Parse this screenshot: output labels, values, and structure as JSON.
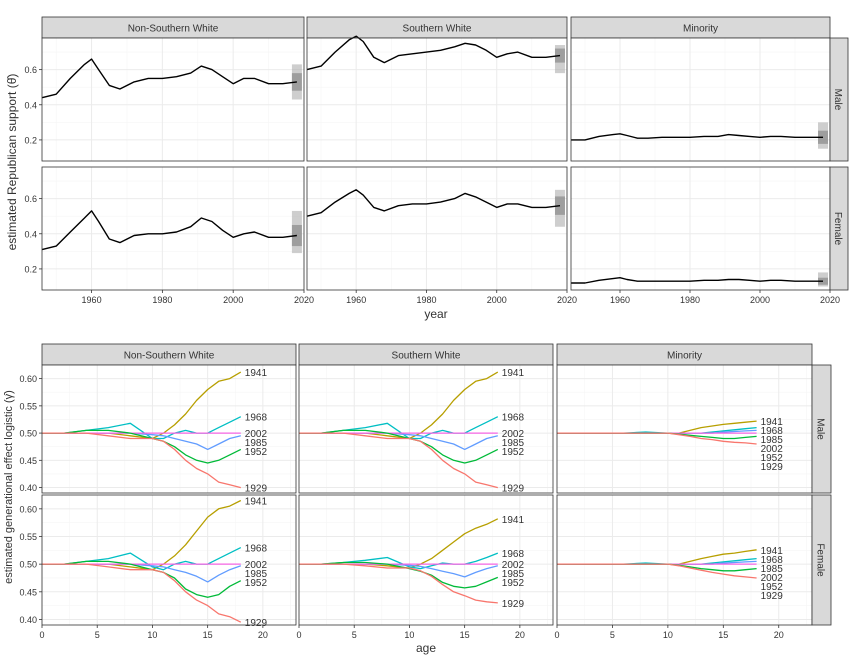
{
  "colors": {
    "strip_bg": "#d9d9d9",
    "panel_border": "#333333",
    "grid_major": "#ebebeb",
    "grid_minor": "#f5f5f5",
    "line_top": "#000000",
    "band": "#a6a6a6",
    "text": "#333333",
    "cohort": {
      "1929": "#f8766d",
      "1941": "#b79f00",
      "1952": "#00ba38",
      "1968": "#00bfc4",
      "1985": "#619cff",
      "2002": "#f564e3"
    }
  },
  "top": {
    "ylabel": "estimated Republican support (θ̂)",
    "xlabel": "year",
    "col_strips": [
      "Non-Southern White",
      "Southern White",
      "Minority"
    ],
    "row_strips": [
      "Male",
      "Female"
    ],
    "x_ticks": [
      "1960",
      "1980",
      "2000",
      "2020"
    ],
    "y_ticks": [
      "0.2",
      "0.4",
      "0.6"
    ]
  },
  "bottom": {
    "ylabel": "estimated generational effect logistic (γ̂)",
    "xlabel": "age",
    "col_strips": [
      "Non-Southern White",
      "Southern White",
      "Minority"
    ],
    "row_strips": [
      "Male",
      "Female"
    ],
    "x_ticks": [
      "0",
      "5",
      "10",
      "15",
      "20"
    ],
    "y_ticks": [
      "0.40",
      "0.45",
      "0.50",
      "0.55",
      "0.60"
    ]
  },
  "chart_data": [
    {
      "type": "line",
      "xlabel": "year",
      "ylabel": "estimated Republican support (θ̂)",
      "xlim": [
        1946,
        2020
      ],
      "ylim": [
        0.08,
        0.78
      ],
      "facets_rows": [
        "Male",
        "Female"
      ],
      "facets_cols": [
        "Non-Southern White",
        "Southern White",
        "Minority"
      ],
      "x": [
        1946,
        1950,
        1954,
        1958,
        1960,
        1962,
        1965,
        1968,
        1972,
        1976,
        1980,
        1984,
        1988,
        1991,
        1994,
        1997,
        2000,
        2003,
        2006,
        2010,
        2014,
        2018
      ],
      "series": [
        {
          "row": "Male",
          "col": "Non-Southern White",
          "values": [
            0.44,
            0.46,
            0.55,
            0.63,
            0.66,
            0.6,
            0.51,
            0.49,
            0.53,
            0.55,
            0.55,
            0.56,
            0.58,
            0.62,
            0.6,
            0.56,
            0.52,
            0.55,
            0.55,
            0.52,
            0.52,
            0.53
          ],
          "band": [
            0.43,
            0.63
          ]
        },
        {
          "row": "Male",
          "col": "Southern White",
          "values": [
            0.6,
            0.62,
            0.7,
            0.77,
            0.79,
            0.76,
            0.67,
            0.64,
            0.68,
            0.69,
            0.7,
            0.71,
            0.73,
            0.75,
            0.74,
            0.71,
            0.67,
            0.69,
            0.7,
            0.67,
            0.67,
            0.68
          ],
          "band": [
            0.58,
            0.74
          ]
        },
        {
          "row": "Male",
          "col": "Minority",
          "values": [
            0.2,
            0.2,
            0.22,
            0.23,
            0.235,
            0.225,
            0.21,
            0.21,
            0.215,
            0.215,
            0.215,
            0.22,
            0.22,
            0.23,
            0.225,
            0.22,
            0.215,
            0.22,
            0.22,
            0.215,
            0.215,
            0.215
          ],
          "band": [
            0.15,
            0.3
          ]
        },
        {
          "row": "Female",
          "col": "Non-Southern White",
          "values": [
            0.31,
            0.33,
            0.41,
            0.49,
            0.53,
            0.47,
            0.37,
            0.35,
            0.39,
            0.4,
            0.4,
            0.41,
            0.44,
            0.49,
            0.47,
            0.42,
            0.38,
            0.4,
            0.41,
            0.38,
            0.38,
            0.39
          ],
          "band": [
            0.29,
            0.53
          ]
        },
        {
          "row": "Female",
          "col": "Southern White",
          "values": [
            0.5,
            0.52,
            0.58,
            0.63,
            0.65,
            0.62,
            0.55,
            0.53,
            0.56,
            0.57,
            0.57,
            0.58,
            0.6,
            0.63,
            0.61,
            0.58,
            0.55,
            0.57,
            0.57,
            0.55,
            0.55,
            0.56
          ],
          "band": [
            0.44,
            0.65
          ]
        },
        {
          "row": "Female",
          "col": "Minority",
          "values": [
            0.12,
            0.12,
            0.135,
            0.145,
            0.15,
            0.14,
            0.13,
            0.13,
            0.13,
            0.13,
            0.13,
            0.135,
            0.135,
            0.14,
            0.14,
            0.135,
            0.13,
            0.135,
            0.135,
            0.13,
            0.13,
            0.13
          ],
          "band": [
            0.1,
            0.18
          ]
        }
      ]
    },
    {
      "type": "line",
      "xlabel": "age",
      "ylabel": "estimated generational effect logistic (γ̂)",
      "xlim": [
        0,
        23
      ],
      "ylim": [
        0.39,
        0.625
      ],
      "facets_rows": [
        "Male",
        "Female"
      ],
      "facets_cols": [
        "Non-Southern White",
        "Southern White",
        "Minority"
      ],
      "x": [
        0,
        2,
        4,
        6,
        8,
        10,
        11,
        12,
        13,
        14,
        15,
        16,
        17,
        18
      ],
      "series": [
        {
          "row": "Male",
          "col": "Non-Southern White",
          "cohorts": {
            "1941": [
              0.5,
              0.5,
              0.5,
              0.5,
              0.495,
              0.49,
              0.5,
              0.515,
              0.535,
              0.56,
              0.58,
              0.595,
              0.6,
              0.612
            ],
            "1968": [
              0.5,
              0.5,
              0.505,
              0.51,
              0.518,
              0.49,
              0.49,
              0.5,
              0.505,
              0.5,
              0.5,
              0.51,
              0.52,
              0.53
            ],
            "1985": [
              0.5,
              0.5,
              0.5,
              0.5,
              0.5,
              0.497,
              0.495,
              0.49,
              0.485,
              0.48,
              0.47,
              0.48,
              0.49,
              0.495
            ],
            "2002": [
              0.5,
              0.5,
              0.5,
              0.5,
              0.5,
              0.5,
              0.5,
              0.5,
              0.5,
              0.5,
              0.5,
              0.5,
              0.5,
              0.5
            ],
            "1952": [
              0.5,
              0.5,
              0.505,
              0.505,
              0.5,
              0.49,
              0.485,
              0.475,
              0.46,
              0.45,
              0.445,
              0.45,
              0.46,
              0.47
            ],
            "1929": [
              0.5,
              0.5,
              0.5,
              0.495,
              0.49,
              0.49,
              0.485,
              0.47,
              0.45,
              0.435,
              0.425,
              0.41,
              0.405,
              0.4
            ]
          }
        },
        {
          "row": "Male",
          "col": "Southern White",
          "cohorts": {
            "1941": [
              0.5,
              0.5,
              0.5,
              0.5,
              0.495,
              0.49,
              0.5,
              0.515,
              0.535,
              0.56,
              0.58,
              0.595,
              0.6,
              0.612
            ],
            "1968": [
              0.5,
              0.5,
              0.505,
              0.51,
              0.518,
              0.49,
              0.49,
              0.5,
              0.505,
              0.5,
              0.5,
              0.51,
              0.52,
              0.53
            ],
            "1985": [
              0.5,
              0.5,
              0.5,
              0.5,
              0.5,
              0.497,
              0.495,
              0.49,
              0.485,
              0.48,
              0.47,
              0.48,
              0.49,
              0.495
            ],
            "2002": [
              0.5,
              0.5,
              0.5,
              0.5,
              0.5,
              0.5,
              0.5,
              0.5,
              0.5,
              0.5,
              0.5,
              0.5,
              0.5,
              0.5
            ],
            "1952": [
              0.5,
              0.5,
              0.505,
              0.505,
              0.5,
              0.49,
              0.485,
              0.475,
              0.46,
              0.45,
              0.445,
              0.45,
              0.46,
              0.47
            ],
            "1929": [
              0.5,
              0.5,
              0.5,
              0.495,
              0.49,
              0.49,
              0.485,
              0.47,
              0.45,
              0.435,
              0.425,
              0.41,
              0.405,
              0.4
            ]
          }
        },
        {
          "row": "Male",
          "col": "Minority",
          "cohorts": {
            "1941": [
              0.5,
              0.5,
              0.5,
              0.5,
              0.5,
              0.5,
              0.5,
              0.505,
              0.51,
              0.513,
              0.516,
              0.518,
              0.52,
              0.522
            ],
            "1968": [
              0.5,
              0.5,
              0.5,
              0.5,
              0.502,
              0.5,
              0.5,
              0.5,
              0.5,
              0.502,
              0.504,
              0.506,
              0.508,
              0.51
            ],
            "1985": [
              0.5,
              0.5,
              0.5,
              0.5,
              0.5,
              0.5,
              0.5,
              0.5,
              0.5,
              0.5,
              0.502,
              0.503,
              0.504,
              0.505
            ],
            "2002": [
              0.5,
              0.5,
              0.5,
              0.5,
              0.5,
              0.5,
              0.5,
              0.5,
              0.5,
              0.5,
              0.5,
              0.5,
              0.5,
              0.5
            ],
            "1952": [
              0.5,
              0.5,
              0.5,
              0.5,
              0.5,
              0.5,
              0.498,
              0.496,
              0.494,
              0.492,
              0.49,
              0.49,
              0.492,
              0.494
            ],
            "1929": [
              0.5,
              0.5,
              0.5,
              0.5,
              0.5,
              0.5,
              0.497,
              0.494,
              0.49,
              0.488,
              0.485,
              0.483,
              0.482,
              0.48
            ]
          }
        },
        {
          "row": "Female",
          "col": "Non-Southern White",
          "cohorts": {
            "1941": [
              0.5,
              0.5,
              0.5,
              0.5,
              0.495,
              0.49,
              0.5,
              0.515,
              0.535,
              0.56,
              0.585,
              0.6,
              0.605,
              0.615
            ],
            "1968": [
              0.5,
              0.5,
              0.505,
              0.51,
              0.52,
              0.495,
              0.49,
              0.5,
              0.505,
              0.5,
              0.5,
              0.51,
              0.52,
              0.53
            ],
            "1985": [
              0.5,
              0.5,
              0.5,
              0.5,
              0.5,
              0.497,
              0.495,
              0.49,
              0.485,
              0.478,
              0.468,
              0.48,
              0.49,
              0.497
            ],
            "2002": [
              0.5,
              0.5,
              0.5,
              0.5,
              0.5,
              0.5,
              0.5,
              0.5,
              0.5,
              0.5,
              0.5,
              0.5,
              0.5,
              0.5
            ],
            "1952": [
              0.5,
              0.5,
              0.505,
              0.505,
              0.5,
              0.49,
              0.485,
              0.475,
              0.455,
              0.445,
              0.44,
              0.445,
              0.46,
              0.47
            ],
            "1929": [
              0.5,
              0.5,
              0.5,
              0.495,
              0.49,
              0.49,
              0.485,
              0.47,
              0.45,
              0.435,
              0.425,
              0.41,
              0.405,
              0.395
            ]
          }
        },
        {
          "row": "Female",
          "col": "Southern White",
          "cohorts": {
            "1941": [
              0.5,
              0.5,
              0.5,
              0.5,
              0.497,
              0.493,
              0.5,
              0.51,
              0.525,
              0.54,
              0.555,
              0.565,
              0.572,
              0.582
            ],
            "1968": [
              0.5,
              0.5,
              0.503,
              0.507,
              0.512,
              0.495,
              0.492,
              0.497,
              0.502,
              0.5,
              0.5,
              0.505,
              0.512,
              0.52
            ],
            "1985": [
              0.5,
              0.5,
              0.5,
              0.5,
              0.5,
              0.498,
              0.496,
              0.492,
              0.487,
              0.483,
              0.477,
              0.485,
              0.492,
              0.497
            ],
            "2002": [
              0.5,
              0.5,
              0.5,
              0.5,
              0.5,
              0.5,
              0.5,
              0.5,
              0.5,
              0.5,
              0.5,
              0.5,
              0.5,
              0.5
            ],
            "1952": [
              0.5,
              0.5,
              0.503,
              0.503,
              0.5,
              0.492,
              0.487,
              0.48,
              0.467,
              0.46,
              0.457,
              0.46,
              0.468,
              0.476
            ],
            "1929": [
              0.5,
              0.5,
              0.5,
              0.497,
              0.493,
              0.493,
              0.488,
              0.478,
              0.463,
              0.45,
              0.443,
              0.435,
              0.432,
              0.43
            ]
          }
        },
        {
          "row": "Female",
          "col": "Minority",
          "cohorts": {
            "1941": [
              0.5,
              0.5,
              0.5,
              0.5,
              0.5,
              0.5,
              0.5,
              0.505,
              0.51,
              0.514,
              0.518,
              0.52,
              0.523,
              0.526
            ],
            "1968": [
              0.5,
              0.5,
              0.5,
              0.5,
              0.502,
              0.5,
              0.5,
              0.5,
              0.5,
              0.502,
              0.504,
              0.506,
              0.508,
              0.51
            ],
            "1985": [
              0.5,
              0.5,
              0.5,
              0.5,
              0.5,
              0.5,
              0.5,
              0.5,
              0.5,
              0.5,
              0.502,
              0.503,
              0.504,
              0.505
            ],
            "2002": [
              0.5,
              0.5,
              0.5,
              0.5,
              0.5,
              0.5,
              0.5,
              0.5,
              0.5,
              0.5,
              0.5,
              0.5,
              0.5,
              0.5
            ],
            "1952": [
              0.5,
              0.5,
              0.5,
              0.5,
              0.5,
              0.5,
              0.498,
              0.495,
              0.492,
              0.49,
              0.488,
              0.488,
              0.49,
              0.492
            ],
            "1929": [
              0.5,
              0.5,
              0.5,
              0.5,
              0.5,
              0.5,
              0.497,
              0.493,
              0.489,
              0.485,
              0.482,
              0.479,
              0.477,
              0.475
            ]
          }
        }
      ],
      "end_labels_order": [
        "1941",
        "1968",
        "1985",
        "2002",
        "1952",
        "1929"
      ]
    }
  ]
}
